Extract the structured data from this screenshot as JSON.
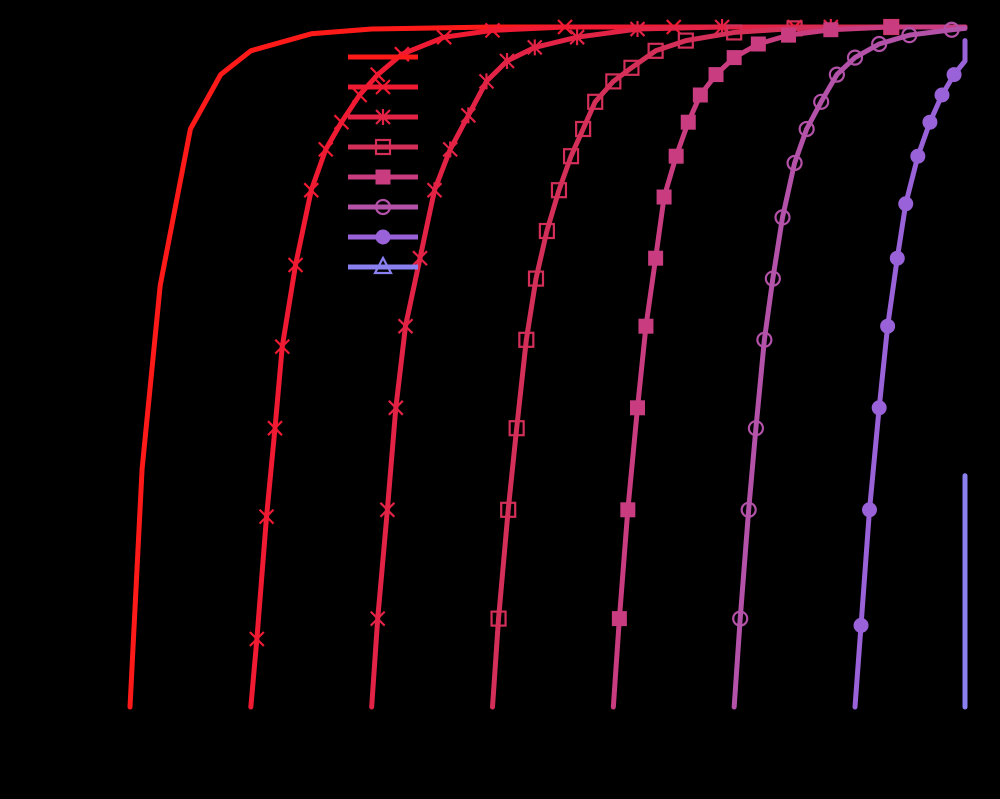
{
  "chart_data": {
    "type": "line",
    "title": "",
    "xlabel": "",
    "ylabel": "",
    "xlim": [
      0,
      7.2
    ],
    "ylim": [
      0,
      1
    ],
    "grid": false,
    "legend_position": "top-left",
    "series": [
      {
        "color": "#ff1a1a",
        "marker": "none",
        "x": [
          0.0,
          0.1,
          0.25,
          0.5,
          0.75,
          1.0,
          1.5,
          2.0,
          3.0,
          4.0,
          5.0,
          6.0,
          7.2
        ],
        "y": [
          0.0,
          0.35,
          0.62,
          0.85,
          0.93,
          0.965,
          0.99,
          0.997,
          1.0,
          1.0,
          1.0,
          1.0,
          1.0
        ]
      },
      {
        "color": "#f01a33",
        "marker": "x",
        "x": [
          1.0,
          1.05,
          1.13,
          1.2,
          1.26,
          1.37,
          1.5,
          1.62,
          1.75,
          1.9,
          2.05,
          2.25,
          2.6,
          3.0,
          3.6,
          4.5,
          5.5,
          7.2
        ],
        "y": [
          0.0,
          0.1,
          0.28,
          0.41,
          0.53,
          0.65,
          0.76,
          0.82,
          0.86,
          0.9,
          0.93,
          0.96,
          0.985,
          0.995,
          1.0,
          1.0,
          1.0,
          1.0
        ]
      },
      {
        "color": "#e22345",
        "marker": "asterisk",
        "x": [
          2.0,
          2.05,
          2.13,
          2.2,
          2.28,
          2.4,
          2.52,
          2.65,
          2.8,
          2.95,
          3.12,
          3.35,
          3.7,
          4.2,
          4.9,
          5.8,
          7.2
        ],
        "y": [
          0.0,
          0.13,
          0.29,
          0.44,
          0.56,
          0.66,
          0.76,
          0.82,
          0.87,
          0.92,
          0.95,
          0.97,
          0.985,
          0.997,
          1.0,
          1.0,
          1.0
        ]
      },
      {
        "color": "#d42f59",
        "marker": "open-square",
        "x": [
          3.0,
          3.05,
          3.13,
          3.2,
          3.28,
          3.36,
          3.45,
          3.55,
          3.65,
          3.75,
          3.85,
          4.0,
          4.15,
          4.35,
          4.6,
          5.0,
          5.5,
          6.3,
          7.2
        ],
        "y": [
          0.0,
          0.13,
          0.29,
          0.41,
          0.54,
          0.63,
          0.7,
          0.76,
          0.81,
          0.85,
          0.89,
          0.92,
          0.94,
          0.965,
          0.98,
          0.992,
          0.998,
          1.0,
          1.0
        ]
      },
      {
        "color": "#c93c80",
        "marker": "filled-square",
        "x": [
          4.0,
          4.05,
          4.12,
          4.2,
          4.27,
          4.35,
          4.42,
          4.52,
          4.62,
          4.72,
          4.85,
          5.0,
          5.2,
          5.45,
          5.8,
          6.3,
          7.2
        ],
        "y": [
          0.0,
          0.13,
          0.29,
          0.44,
          0.56,
          0.66,
          0.75,
          0.81,
          0.86,
          0.9,
          0.93,
          0.955,
          0.975,
          0.988,
          0.996,
          1.0,
          1.0
        ]
      },
      {
        "color": "#b352a8",
        "marker": "open-circle",
        "x": [
          5.0,
          5.05,
          5.12,
          5.18,
          5.25,
          5.32,
          5.4,
          5.5,
          5.6,
          5.72,
          5.85,
          6.0,
          6.2,
          6.45,
          6.8,
          7.2
        ],
        "y": [
          0.0,
          0.13,
          0.29,
          0.41,
          0.54,
          0.63,
          0.72,
          0.8,
          0.85,
          0.89,
          0.93,
          0.955,
          0.975,
          0.988,
          0.996,
          0.998
        ]
      },
      {
        "color": "#9a62d8",
        "marker": "filled-circle",
        "x": [
          6.0,
          6.05,
          6.12,
          6.2,
          6.27,
          6.35,
          6.42,
          6.52,
          6.62,
          6.72,
          6.82,
          6.92,
          7.02,
          7.12,
          7.2
        ],
        "y": [
          0.0,
          0.12,
          0.29,
          0.44,
          0.56,
          0.66,
          0.74,
          0.81,
          0.86,
          0.9,
          0.93,
          0.95,
          0.965,
          0.975,
          0.98
        ]
      },
      {
        "color": "#8a80f0",
        "marker": "open-triangle",
        "x": [
          7.0,
          7.05,
          7.1,
          7.15
        ],
        "y": [
          0.0,
          0.15,
          0.29,
          0.34
        ]
      }
    ]
  }
}
